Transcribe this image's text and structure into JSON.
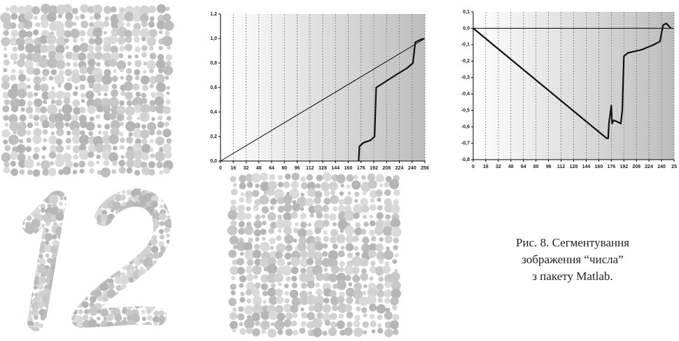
{
  "chart_data": [
    {
      "type": "line",
      "xlim": [
        0,
        256
      ],
      "xticks": [
        0,
        16,
        32,
        48,
        64,
        80,
        96,
        112,
        128,
        144,
        160,
        176,
        192,
        208,
        224,
        240,
        256
      ],
      "ylim": [
        0,
        1.2
      ],
      "yticks": [
        {
          "value": 0,
          "label": "0,0"
        },
        {
          "value": 0.2,
          "label": "0,2"
        },
        {
          "value": 0.4,
          "label": "0,4"
        },
        {
          "value": 0.6,
          "label": "0,6"
        },
        {
          "value": 0.8,
          "label": "0,8"
        },
        {
          "value": 1.0,
          "label": "1,0"
        },
        {
          "value": 1.2,
          "label": "1,2"
        }
      ],
      "grid": true,
      "series": [
        {
          "color": "#000000",
          "width": 1,
          "x": [
            0,
            256
          ],
          "values": [
            0,
            1.0
          ]
        },
        {
          "color": "#111111",
          "width": 2.2,
          "x": [
            173,
            174,
            179,
            188,
            193,
            195,
            200,
            219,
            234,
            241,
            244,
            250,
            255
          ],
          "values": [
            0,
            0.12,
            0.15,
            0.17,
            0.2,
            0.6,
            0.62,
            0.7,
            0.76,
            0.8,
            0.97,
            0.99,
            1.0
          ]
        }
      ]
    },
    {
      "type": "line",
      "xlim": [
        0,
        256
      ],
      "xticks": [
        0,
        16,
        32,
        48,
        64,
        80,
        96,
        112,
        128,
        144,
        160,
        176,
        192,
        208,
        224,
        240,
        {
          "value": 256,
          "label": "25"
        }
      ],
      "ylim": [
        -0.8,
        0.1
      ],
      "yticks": [
        {
          "value": -0.8,
          "label": "-0,8"
        },
        {
          "value": -0.7,
          "label": "-0,7"
        },
        {
          "value": -0.6,
          "label": "-0,6"
        },
        {
          "value": -0.5,
          "label": "-0,5"
        },
        {
          "value": -0.4,
          "label": "-0,4"
        },
        {
          "value": -0.3,
          "label": "-0,3"
        },
        {
          "value": -0.2,
          "label": "-0,2"
        },
        {
          "value": -0.1,
          "label": "-0,1"
        },
        {
          "value": 0,
          "label": "0,0"
        },
        {
          "value": 0.1,
          "label": "0,1"
        }
      ],
      "grid": true,
      "series": [
        {
          "color": "#000000",
          "width": 1,
          "x": [
            0,
            256
          ],
          "values": [
            0,
            0
          ]
        },
        {
          "color": "#111111",
          "width": 2.2,
          "x": [
            0,
            170,
            172,
            173,
            176,
            177,
            179,
            184,
            188,
            190,
            192,
            197,
            215,
            230,
            238,
            242,
            246,
            252
          ],
          "values": [
            0,
            -0.67,
            -0.67,
            -0.58,
            -0.47,
            -0.58,
            -0.56,
            -0.57,
            -0.58,
            -0.5,
            -0.17,
            -0.15,
            -0.13,
            -0.1,
            -0.08,
            0.02,
            0.03,
            0.0
          ]
        }
      ]
    }
  ],
  "caption": {
    "lines": [
      "Рис. 8. Сегментування",
      "зображення “числа”",
      "з пакету Matlab."
    ]
  }
}
